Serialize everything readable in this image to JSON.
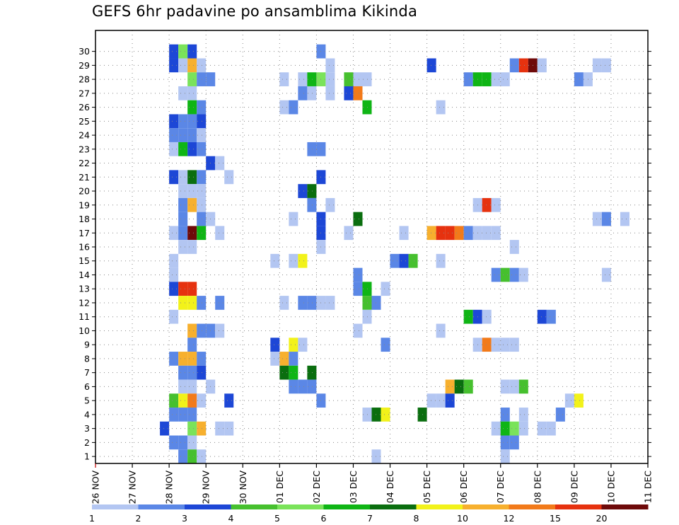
{
  "chart_data": {
    "type": "heatmap",
    "title": "GEFS 6hr padavine po ansamblima Kikinda",
    "x_ticks": [
      "26 NOV",
      "27 NOV",
      "28 NOV",
      "29 NOV",
      "30 NOV",
      "01 DEC",
      "02 DEC",
      "03 DEC",
      "04 DEC",
      "05 DEC",
      "06 DEC",
      "07 DEC",
      "08 DEC",
      "09 DEC",
      "10 DEC",
      "11 DEC"
    ],
    "x_step_hours": 6,
    "y_members": [
      1,
      2,
      3,
      4,
      5,
      6,
      7,
      8,
      9,
      10,
      11,
      12,
      13,
      14,
      15,
      16,
      17,
      18,
      19,
      20,
      21,
      22,
      23,
      24,
      25,
      26,
      27,
      28,
      29,
      30
    ],
    "grid": true,
    "colorbar": {
      "labels": [
        "1",
        "2",
        "3",
        "4",
        "5",
        "6",
        "7",
        "8",
        "10",
        "12",
        "15",
        "20"
      ],
      "colors": [
        "#b3c6f2",
        "#5b87e6",
        "#1d47d6",
        "#46c02e",
        "#7ae35a",
        "#0fb515",
        "#0a6e0f",
        "#f2f21a",
        "#f7b02e",
        "#f27a1a",
        "#e6320f",
        "#6e0a0a"
      ]
    },
    "cells": [
      [
        30,
        8,
        3
      ],
      [
        30,
        9,
        5
      ],
      [
        30,
        10,
        3
      ],
      [
        30,
        24,
        2
      ],
      [
        29,
        8,
        3
      ],
      [
        29,
        9,
        1
      ],
      [
        29,
        10,
        9
      ],
      [
        29,
        11,
        1
      ],
      [
        29,
        25,
        1
      ],
      [
        29,
        36,
        3
      ],
      [
        29,
        45,
        2
      ],
      [
        29,
        46,
        11
      ],
      [
        29,
        47,
        12
      ],
      [
        29,
        48,
        1
      ],
      [
        29,
        54,
        1
      ],
      [
        29,
        55,
        1
      ],
      [
        28,
        10,
        5
      ],
      [
        28,
        11,
        2
      ],
      [
        28,
        12,
        2
      ],
      [
        28,
        20,
        1
      ],
      [
        28,
        22,
        1
      ],
      [
        28,
        23,
        6
      ],
      [
        28,
        24,
        5
      ],
      [
        28,
        25,
        1
      ],
      [
        28,
        27,
        4
      ],
      [
        28,
        28,
        1
      ],
      [
        28,
        29,
        1
      ],
      [
        28,
        40,
        2
      ],
      [
        28,
        41,
        6
      ],
      [
        28,
        42,
        6
      ],
      [
        28,
        43,
        1
      ],
      [
        28,
        44,
        1
      ],
      [
        28,
        52,
        2
      ],
      [
        28,
        53,
        1
      ],
      [
        27,
        9,
        1
      ],
      [
        27,
        10,
        1
      ],
      [
        27,
        22,
        2
      ],
      [
        27,
        23,
        1
      ],
      [
        27,
        25,
        1
      ],
      [
        27,
        27,
        3
      ],
      [
        27,
        28,
        10
      ],
      [
        26,
        10,
        6
      ],
      [
        26,
        11,
        2
      ],
      [
        26,
        20,
        1
      ],
      [
        26,
        21,
        2
      ],
      [
        26,
        29,
        6
      ],
      [
        26,
        37,
        1
      ],
      [
        25,
        8,
        3
      ],
      [
        25,
        9,
        2
      ],
      [
        25,
        10,
        2
      ],
      [
        25,
        11,
        3
      ],
      [
        24,
        8,
        2
      ],
      [
        24,
        9,
        2
      ],
      [
        24,
        10,
        2
      ],
      [
        24,
        11,
        1
      ],
      [
        23,
        8,
        1
      ],
      [
        23,
        9,
        6
      ],
      [
        23,
        10,
        3
      ],
      [
        23,
        11,
        2
      ],
      [
        23,
        23,
        2
      ],
      [
        23,
        24,
        2
      ],
      [
        22,
        12,
        3
      ],
      [
        22,
        13,
        1
      ],
      [
        21,
        8,
        3
      ],
      [
        21,
        9,
        1
      ],
      [
        21,
        10,
        7
      ],
      [
        21,
        11,
        2
      ],
      [
        21,
        14,
        1
      ],
      [
        21,
        24,
        3
      ],
      [
        20,
        9,
        1
      ],
      [
        20,
        10,
        1
      ],
      [
        20,
        11,
        1
      ],
      [
        20,
        22,
        3
      ],
      [
        20,
        23,
        7
      ],
      [
        19,
        9,
        2
      ],
      [
        19,
        10,
        9
      ],
      [
        19,
        11,
        1
      ],
      [
        19,
        23,
        2
      ],
      [
        19,
        25,
        1
      ],
      [
        19,
        41,
        1
      ],
      [
        19,
        42,
        11
      ],
      [
        19,
        43,
        1
      ],
      [
        18,
        9,
        2
      ],
      [
        18,
        11,
        2
      ],
      [
        18,
        12,
        1
      ],
      [
        18,
        21,
        1
      ],
      [
        18,
        24,
        3
      ],
      [
        18,
        28,
        7
      ],
      [
        18,
        54,
        1
      ],
      [
        18,
        55,
        2
      ],
      [
        18,
        57,
        1
      ],
      [
        17,
        8,
        1
      ],
      [
        17,
        9,
        2
      ],
      [
        17,
        10,
        12
      ],
      [
        17,
        11,
        6
      ],
      [
        17,
        13,
        1
      ],
      [
        17,
        24,
        3
      ],
      [
        17,
        27,
        1
      ],
      [
        17,
        33,
        1
      ],
      [
        17,
        36,
        9
      ],
      [
        17,
        37,
        11
      ],
      [
        17,
        38,
        11
      ],
      [
        17,
        39,
        10
      ],
      [
        17,
        40,
        2
      ],
      [
        17,
        41,
        1
      ],
      [
        17,
        42,
        1
      ],
      [
        17,
        43,
        1
      ],
      [
        16,
        9,
        1
      ],
      [
        16,
        10,
        1
      ],
      [
        16,
        24,
        1
      ],
      [
        16,
        45,
        1
      ],
      [
        15,
        8,
        1
      ],
      [
        15,
        19,
        1
      ],
      [
        15,
        21,
        1
      ],
      [
        15,
        22,
        8
      ],
      [
        15,
        32,
        2
      ],
      [
        15,
        33,
        3
      ],
      [
        15,
        34,
        4
      ],
      [
        15,
        37,
        1
      ],
      [
        14,
        8,
        1
      ],
      [
        14,
        28,
        2
      ],
      [
        14,
        43,
        2
      ],
      [
        14,
        44,
        4
      ],
      [
        14,
        45,
        2
      ],
      [
        14,
        46,
        1
      ],
      [
        14,
        55,
        1
      ],
      [
        13,
        8,
        3
      ],
      [
        13,
        9,
        11
      ],
      [
        13,
        10,
        11
      ],
      [
        13,
        28,
        2
      ],
      [
        13,
        29,
        6
      ],
      [
        13,
        31,
        1
      ],
      [
        12,
        9,
        8
      ],
      [
        12,
        10,
        8
      ],
      [
        12,
        11,
        2
      ],
      [
        12,
        13,
        2
      ],
      [
        12,
        20,
        1
      ],
      [
        12,
        22,
        2
      ],
      [
        12,
        23,
        2
      ],
      [
        12,
        24,
        1
      ],
      [
        12,
        25,
        1
      ],
      [
        12,
        29,
        4
      ],
      [
        12,
        30,
        2
      ],
      [
        11,
        8,
        1
      ],
      [
        11,
        29,
        1
      ],
      [
        11,
        40,
        6
      ],
      [
        11,
        41,
        3
      ],
      [
        11,
        42,
        1
      ],
      [
        11,
        48,
        3
      ],
      [
        11,
        49,
        2
      ],
      [
        10,
        10,
        9
      ],
      [
        10,
        11,
        2
      ],
      [
        10,
        12,
        2
      ],
      [
        10,
        13,
        1
      ],
      [
        10,
        28,
        1
      ],
      [
        10,
        37,
        1
      ],
      [
        9,
        10,
        2
      ],
      [
        9,
        19,
        3
      ],
      [
        9,
        21,
        8
      ],
      [
        9,
        22,
        1
      ],
      [
        9,
        31,
        2
      ],
      [
        9,
        41,
        1
      ],
      [
        9,
        42,
        10
      ],
      [
        9,
        43,
        1
      ],
      [
        9,
        44,
        1
      ],
      [
        9,
        45,
        1
      ],
      [
        8,
        8,
        2
      ],
      [
        8,
        9,
        9
      ],
      [
        8,
        10,
        9
      ],
      [
        8,
        11,
        2
      ],
      [
        8,
        19,
        1
      ],
      [
        8,
        20,
        9
      ],
      [
        8,
        21,
        2
      ],
      [
        7,
        9,
        2
      ],
      [
        7,
        10,
        2
      ],
      [
        7,
        11,
        3
      ],
      [
        7,
        20,
        7
      ],
      [
        7,
        21,
        6
      ],
      [
        7,
        23,
        7
      ],
      [
        6,
        9,
        1
      ],
      [
        6,
        10,
        1
      ],
      [
        6,
        12,
        1
      ],
      [
        6,
        21,
        2
      ],
      [
        6,
        22,
        2
      ],
      [
        6,
        23,
        2
      ],
      [
        6,
        38,
        9
      ],
      [
        6,
        39,
        7
      ],
      [
        6,
        40,
        4
      ],
      [
        6,
        44,
        1
      ],
      [
        6,
        45,
        1
      ],
      [
        6,
        46,
        4
      ],
      [
        5,
        8,
        4
      ],
      [
        5,
        9,
        8
      ],
      [
        5,
        10,
        10
      ],
      [
        5,
        11,
        1
      ],
      [
        5,
        14,
        3
      ],
      [
        5,
        24,
        2
      ],
      [
        5,
        36,
        1
      ],
      [
        5,
        37,
        1
      ],
      [
        5,
        38,
        3
      ],
      [
        5,
        51,
        1
      ],
      [
        5,
        52,
        8
      ],
      [
        4,
        8,
        2
      ],
      [
        4,
        9,
        2
      ],
      [
        4,
        10,
        2
      ],
      [
        4,
        29,
        1
      ],
      [
        4,
        30,
        7
      ],
      [
        4,
        31,
        8
      ],
      [
        4,
        35,
        7
      ],
      [
        4,
        44,
        2
      ],
      [
        4,
        46,
        1
      ],
      [
        4,
        50,
        2
      ],
      [
        3,
        7,
        3
      ],
      [
        3,
        10,
        5
      ],
      [
        3,
        11,
        9
      ],
      [
        3,
        13,
        1
      ],
      [
        3,
        14,
        1
      ],
      [
        3,
        43,
        1
      ],
      [
        3,
        44,
        6
      ],
      [
        3,
        45,
        5
      ],
      [
        3,
        46,
        1
      ],
      [
        3,
        48,
        1
      ],
      [
        3,
        49,
        1
      ],
      [
        2,
        8,
        2
      ],
      [
        2,
        9,
        2
      ],
      [
        2,
        10,
        1
      ],
      [
        2,
        44,
        2
      ],
      [
        2,
        45,
        2
      ],
      [
        1,
        9,
        2
      ],
      [
        1,
        10,
        4
      ],
      [
        1,
        11,
        1
      ],
      [
        1,
        30,
        1
      ],
      [
        1,
        44,
        1
      ]
    ]
  }
}
